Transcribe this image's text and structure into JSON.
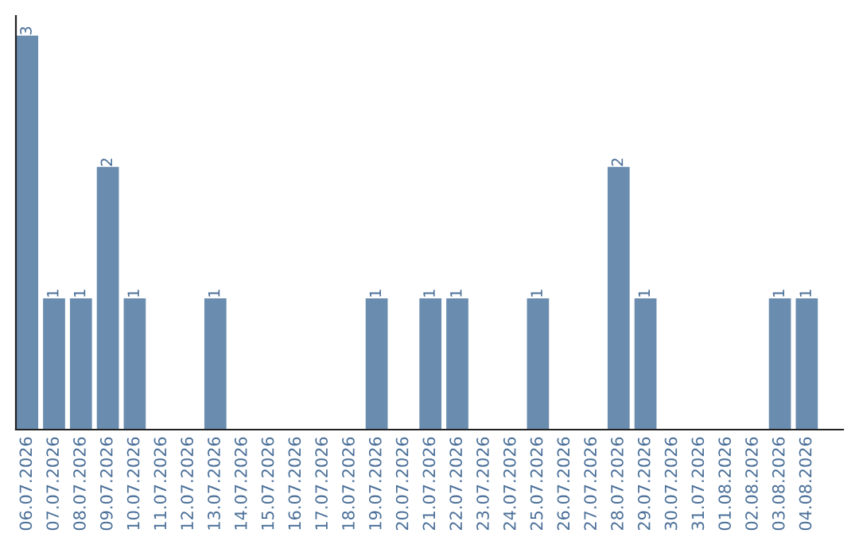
{
  "chart_data": {
    "type": "bar",
    "categories": [
      "06.07.2026",
      "07.07.2026",
      "08.07.2026",
      "09.07.2026",
      "10.07.2026",
      "11.07.2026",
      "12.07.2026",
      "13.07.2026",
      "14.07.2026",
      "15.07.2026",
      "16.07.2026",
      "17.07.2026",
      "18.07.2026",
      "19.07.2026",
      "20.07.2026",
      "21.07.2026",
      "22.07.2026",
      "23.07.2026",
      "24.07.2026",
      "25.07.2026",
      "26.07.2026",
      "27.07.2026",
      "28.07.2026",
      "29.07.2026",
      "30.07.2026",
      "31.07.2026",
      "01.08.2026",
      "02.08.2026",
      "03.08.2026",
      "04.08.2026"
    ],
    "values": [
      3,
      1,
      1,
      2,
      1,
      0,
      0,
      1,
      0,
      0,
      0,
      0,
      0,
      1,
      0,
      1,
      1,
      0,
      0,
      1,
      0,
      0,
      2,
      1,
      0,
      0,
      0,
      0,
      1,
      1
    ],
    "value_labels": [
      "3",
      "1",
      "1",
      "2",
      "1",
      null,
      null,
      "1",
      null,
      null,
      null,
      null,
      null,
      "1",
      null,
      "1",
      "1",
      null,
      null,
      "1",
      null,
      null,
      "2",
      "1",
      null,
      null,
      null,
      null,
      "1",
      "1"
    ],
    "color": "#6a8caf",
    "tick_labels": "x",
    "grid": false
  }
}
